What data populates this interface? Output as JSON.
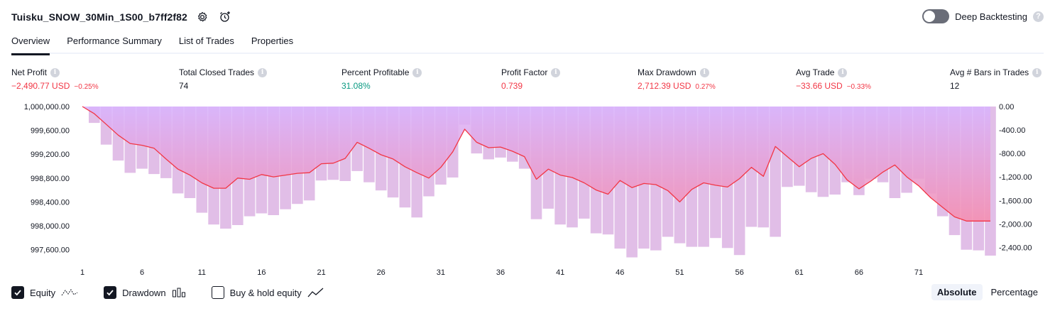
{
  "header": {
    "title": "Tuisku_SNOW_30Min_1S00_b7ff2f82",
    "deep_backtesting_label": "Deep Backtesting",
    "deep_backtesting_enabled": false
  },
  "tabs": [
    {
      "label": "Overview",
      "active": true
    },
    {
      "label": "Performance Summary",
      "active": false
    },
    {
      "label": "List of Trades",
      "active": false
    },
    {
      "label": "Properties",
      "active": false
    }
  ],
  "metrics": {
    "net_profit": {
      "label": "Net Profit",
      "value": "−2,490.77 USD",
      "pct": "−0.25%"
    },
    "total_closed_trades": {
      "label": "Total Closed Trades",
      "value": "74"
    },
    "percent_profitable": {
      "label": "Percent Profitable",
      "value": "31.08%"
    },
    "profit_factor": {
      "label": "Profit Factor",
      "value": "0.739"
    },
    "max_drawdown": {
      "label": "Max Drawdown",
      "value": "2,712.39 USD",
      "pct": "0.27%"
    },
    "avg_trade": {
      "label": "Avg Trade",
      "value": "−33.66 USD",
      "pct": "−0.33%"
    },
    "avg_bars": {
      "label": "Avg # Bars in Trades",
      "value": "12"
    }
  },
  "colors": {
    "negative": "#f23645",
    "positive": "#089981",
    "equity_line": "#f23645",
    "drawdown_bar": "#e1bee7",
    "fill_top": "#d8b4fe",
    "fill_bottom": "#f48fb1"
  },
  "chart_data": {
    "type": "line",
    "title": "",
    "xlabel": "",
    "ylabel": "",
    "x_ticks": [
      "1",
      "6",
      "11",
      "16",
      "21",
      "26",
      "31",
      "36",
      "41",
      "46",
      "51",
      "56",
      "61",
      "66",
      "71"
    ],
    "y_left_ticks": [
      "1,000,000.00",
      "999,600.00",
      "999,200.00",
      "998,800.00",
      "998,400.00",
      "998,000.00",
      "997,600.00"
    ],
    "y_right_ticks": [
      "0.00",
      "-400.00",
      "-800.00",
      "-1,200.00",
      "-1,600.00",
      "-2,000.00",
      "-2,400.00"
    ],
    "ylim_left": [
      997500,
      1000000
    ],
    "ylim_right": [
      -2540,
      0
    ],
    "series": [
      {
        "name": "Equity",
        "values": [
          1000000,
          999880,
          999700,
          999520,
          999380,
          999350,
          999300,
          999120,
          998950,
          998850,
          998720,
          998630,
          998630,
          998800,
          998780,
          998860,
          998820,
          998850,
          998880,
          998890,
          999040,
          999050,
          999130,
          999400,
          999300,
          999190,
          999120,
          998990,
          998890,
          998800,
          998980,
          999240,
          999620,
          999400,
          999310,
          999320,
          999250,
          999160,
          998780,
          998950,
          998850,
          998810,
          998720,
          998600,
          998530,
          998760,
          998640,
          998710,
          998690,
          998590,
          998400,
          998610,
          998720,
          998680,
          998650,
          998790,
          998980,
          998830,
          999330,
          999160,
          998990,
          999130,
          999210,
          999030,
          998770,
          998620,
          998750,
          998900,
          999020,
          998820,
          998670,
          998470,
          998310,
          998150,
          998080,
          998080,
          998080
        ]
      },
      {
        "name": "Drawdown",
        "values": [
          0,
          -280,
          -650,
          -920,
          -1130,
          -1060,
          -1150,
          -1220,
          -1480,
          -1560,
          -1810,
          -2010,
          -2080,
          -2020,
          -1870,
          -1820,
          -1850,
          -1750,
          -1660,
          -1600,
          -1260,
          -1250,
          -1270,
          -1100,
          -1290,
          -1430,
          -1550,
          -1720,
          -1890,
          -1530,
          -1330,
          -1210,
          -310,
          -800,
          -900,
          -870,
          -940,
          -1060,
          -1920,
          -1740,
          -2010,
          -2060,
          -1910,
          -2160,
          -2180,
          -2420,
          -2570,
          -2420,
          -2450,
          -2220,
          -2330,
          -2390,
          -2390,
          -2240,
          -2410,
          -2530,
          -2050,
          -2060,
          -2220,
          -1370,
          -1350,
          -1460,
          -1540,
          -1500,
          -1290,
          -1510,
          -1230,
          -1290,
          -1560,
          -1470,
          -1230,
          -1480,
          -1870,
          -2190,
          -2440,
          -2450,
          -2540
        ]
      }
    ]
  },
  "legend": {
    "equity_label": "Equity",
    "drawdown_label": "Drawdown",
    "buyhold_label": "Buy & hold equity",
    "equity_checked": true,
    "drawdown_checked": true,
    "buyhold_checked": false
  },
  "modes": {
    "absolute_label": "Absolute",
    "percentage_label": "Percentage",
    "active": "Absolute"
  }
}
